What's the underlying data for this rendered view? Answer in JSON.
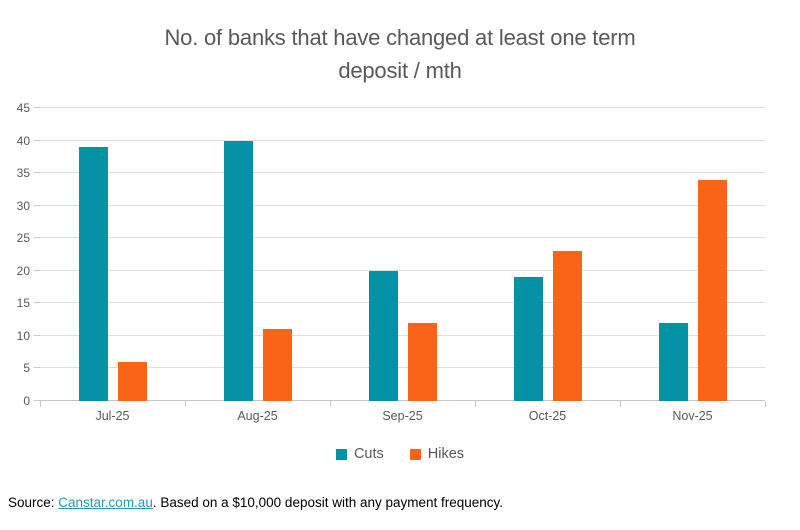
{
  "header": {
    "line1": "No. of banks that have changed at least one term",
    "line2": "deposit / mth"
  },
  "chart_data": {
    "type": "bar",
    "title": "No. of banks that have changed at least one term deposit / mth",
    "categories": [
      "Jul-25",
      "Aug-25",
      "Sep-25",
      "Oct-25",
      "Nov-25"
    ],
    "series": [
      {
        "name": "Cuts",
        "color": "#0692a6",
        "values": [
          39,
          40,
          20,
          19,
          12
        ]
      },
      {
        "name": "Hikes",
        "color": "#fa6418",
        "values": [
          6,
          11,
          12,
          23,
          34
        ]
      }
    ],
    "xlabel": "",
    "ylabel": "",
    "ylim": [
      0,
      45
    ],
    "ytick_step": 5,
    "grid": true,
    "legend_position": "bottom"
  },
  "footer": {
    "source_prefix": "Source: ",
    "source_link": "Canstar.com.au",
    "source_suffix": ". Based on a $10,000 deposit with any payment frequency.",
    "link_color": "#219ab8"
  },
  "colors": {
    "cuts": "#0692a6",
    "hikes": "#fa6418",
    "gridline": "#dedede",
    "axis_text": "#595959",
    "title_text": "#595959"
  }
}
